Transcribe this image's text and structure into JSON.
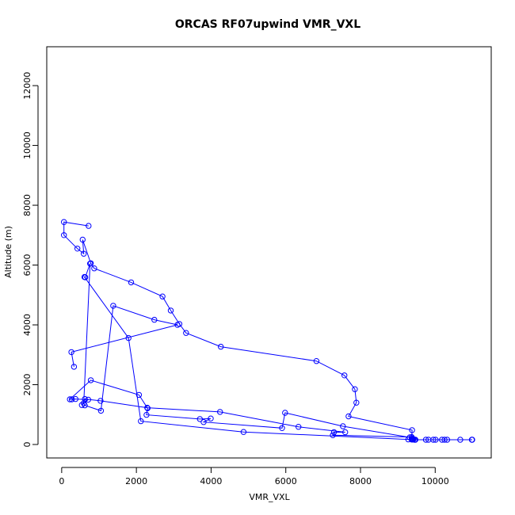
{
  "chart_data": {
    "type": "line",
    "title": "ORCAS RF07upwind VMR_VXL",
    "xlabel": "VMR_VXL",
    "ylabel": "Altitude (m)",
    "xlim": [
      -400,
      11500
    ],
    "ylim": [
      -450,
      13300
    ],
    "xticks": [
      0,
      2000,
      4000,
      6000,
      8000,
      10000
    ],
    "yticks": [
      0,
      2000,
      4000,
      6000,
      8000,
      10000,
      12000
    ],
    "series_color": "#0000ff",
    "markers": "open-circle",
    "series": [
      {
        "x": [
          720,
          60,
          60,
          420,
          590,
          560,
          780,
          870,
          1860,
          2700,
          2920,
          3150,
          3330,
          4260,
          6820,
          7570,
          7850,
          7890,
          7680,
          9380,
          9370,
          9400,
          9410,
          9450,
          9750,
          9820,
          10010,
          10320,
          10670,
          10980,
          10990,
          10250,
          10180,
          9950,
          9470,
          9420,
          9380,
          9370,
          7260,
          7290,
          7590,
          6340,
          4240,
          2290,
          1040,
          620,
          540,
          710,
          370,
          270,
          220,
          780,
          2070,
          2300,
          2270,
          3700,
          3990,
          3800,
          5900,
          5980,
          7530,
          9320,
          9390,
          9410,
          9380,
          9370,
          9280,
          4870,
          2120,
          1790,
          610,
          630,
          760,
          590,
          620,
          1050,
          1380,
          2480,
          3100,
          260,
          330
        ],
        "y": [
          7310,
          7440,
          7000,
          6550,
          6380,
          6850,
          6060,
          5890,
          5420,
          4950,
          4480,
          4030,
          3730,
          3270,
          2790,
          2310,
          1850,
          1400,
          940,
          480,
          170,
          170,
          170,
          160,
          160,
          160,
          160,
          160,
          160,
          160,
          160,
          160,
          160,
          160,
          160,
          180,
          210,
          250,
          310,
          410,
          410,
          590,
          1090,
          1230,
          1460,
          1520,
          1320,
          1500,
          1520,
          1510,
          1510,
          2150,
          1660,
          1210,
          990,
          850,
          870,
          750,
          550,
          1060,
          610,
          240,
          170,
          170,
          170,
          170,
          170,
          420,
          780,
          3560,
          5600,
          5590,
          6050,
          1380,
          1310,
          1130,
          4640,
          4170,
          4000,
          3090,
          2600
        ]
      }
    ]
  }
}
